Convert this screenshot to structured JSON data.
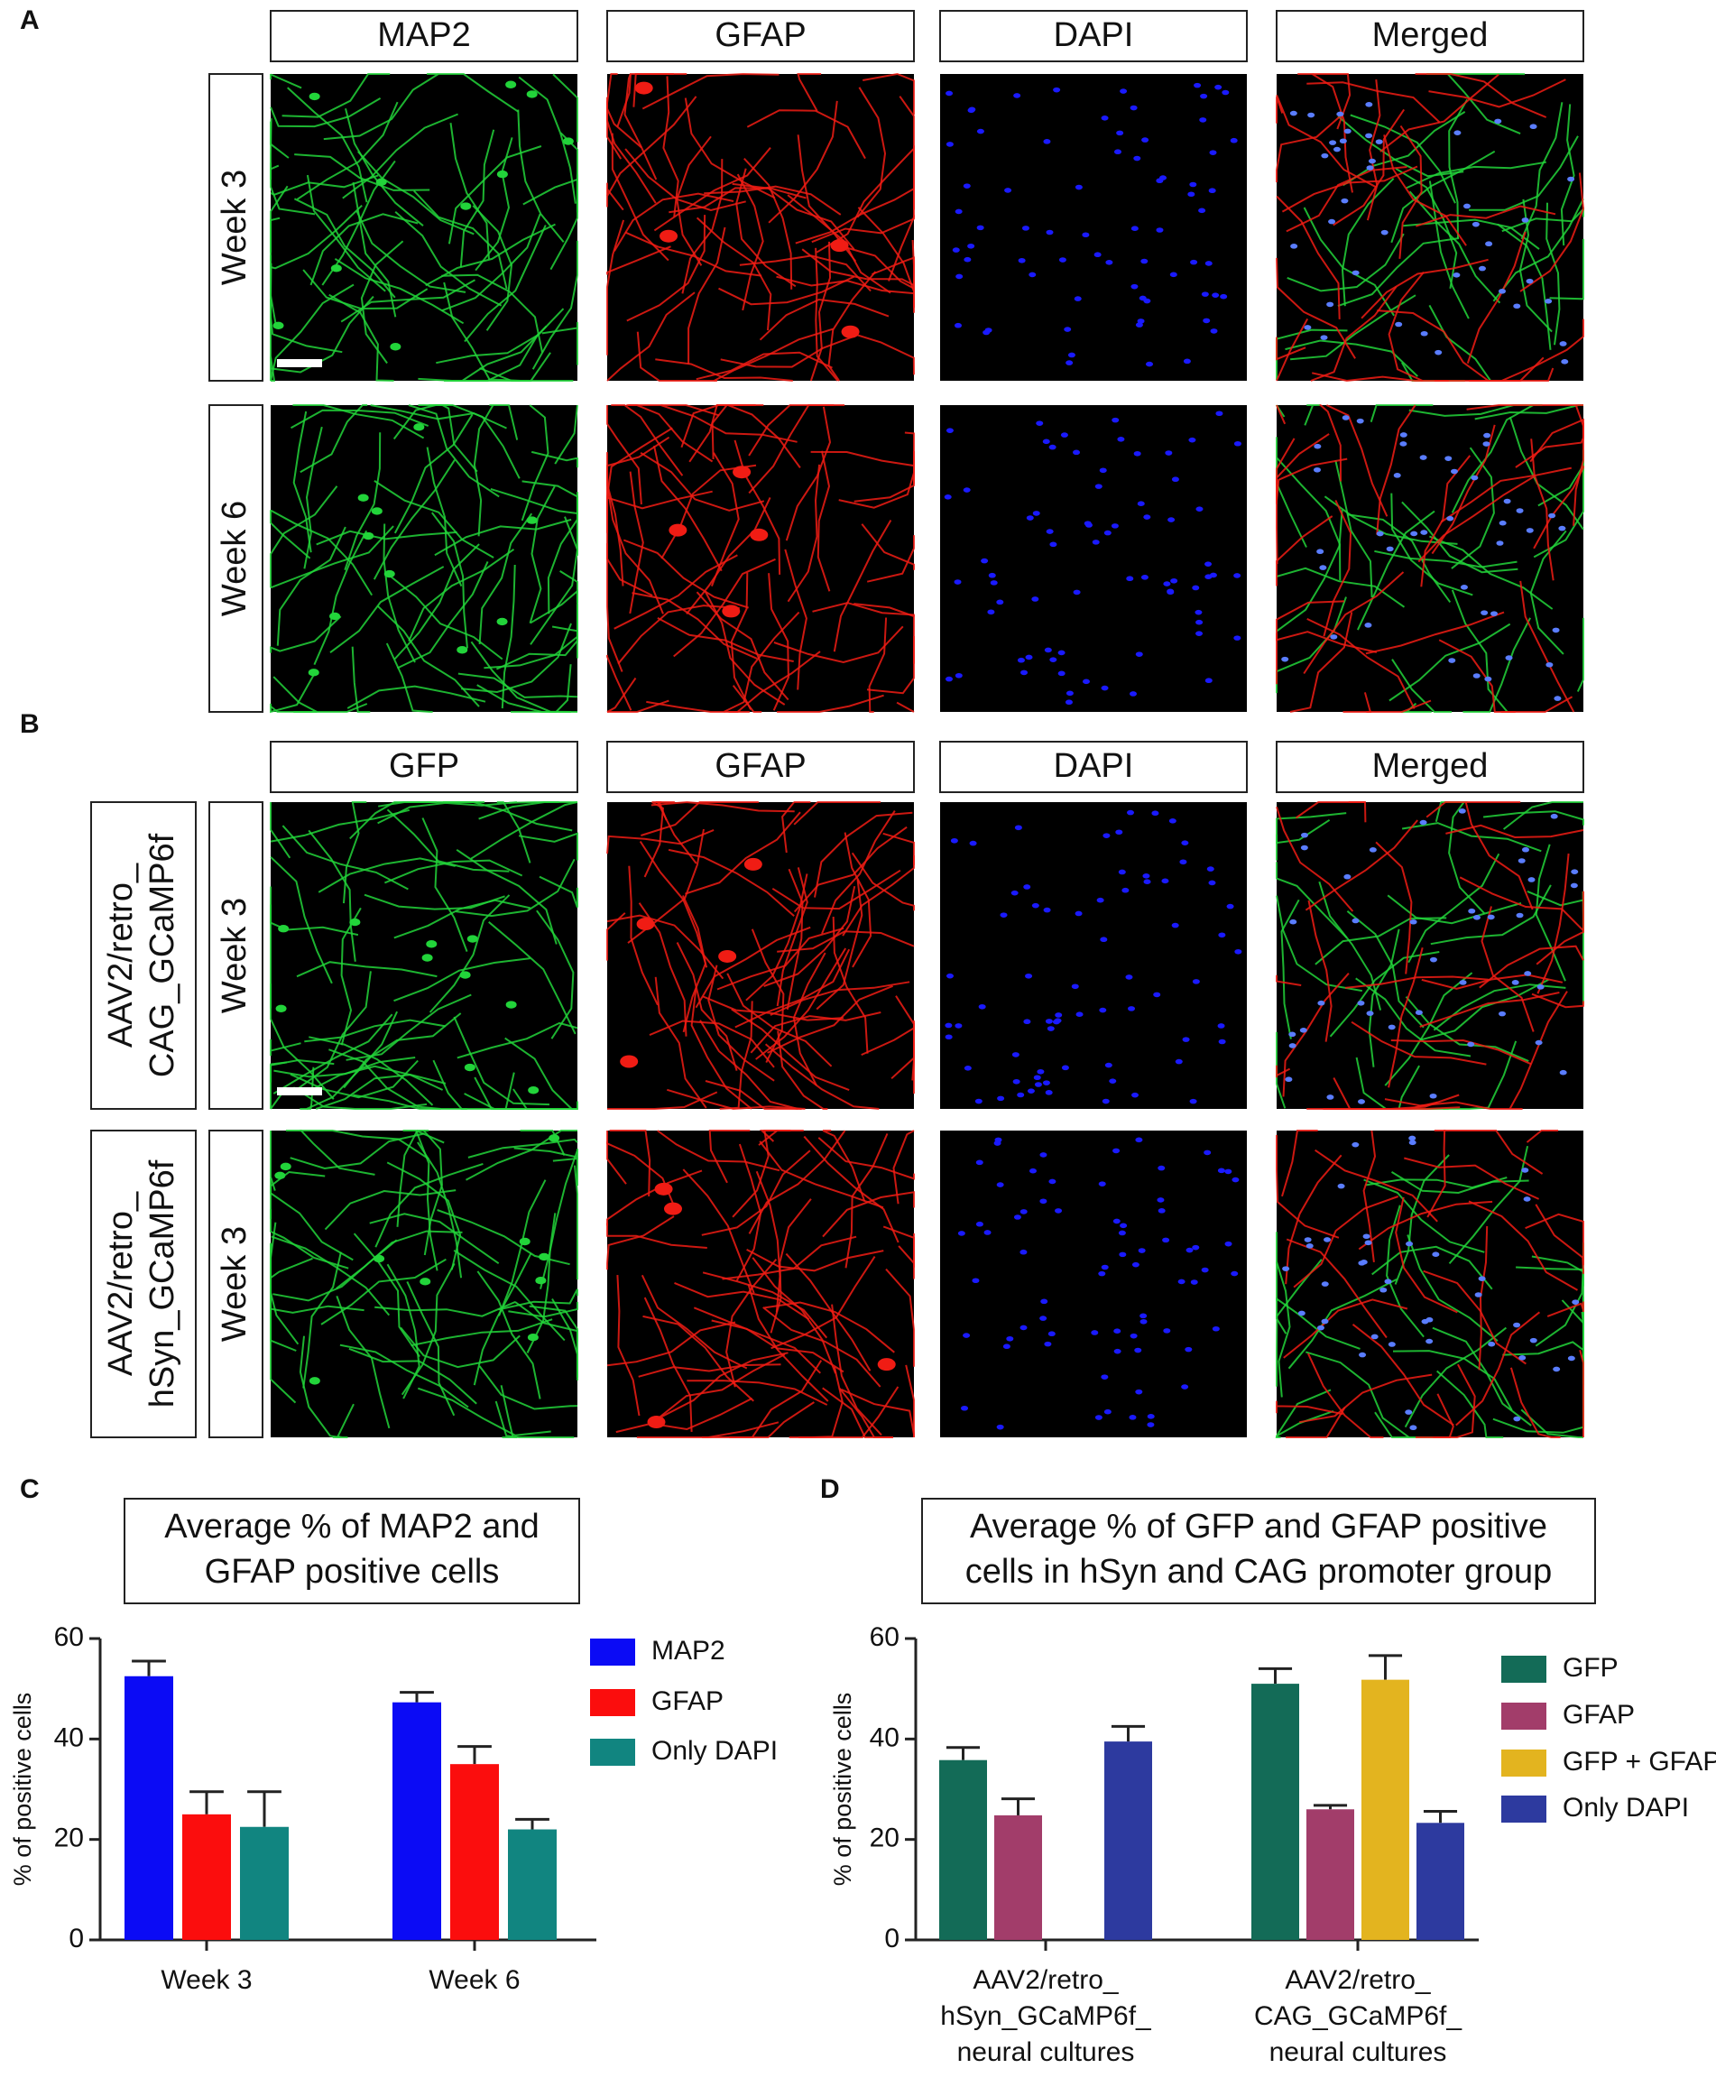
{
  "panels": {
    "A": {
      "label": "A",
      "columns": [
        "MAP2",
        "GFAP",
        "DAPI",
        "Merged"
      ],
      "rows": [
        {
          "week": "Week 3"
        },
        {
          "week": "Week 6"
        }
      ]
    },
    "B": {
      "label": "B",
      "columns": [
        "GFP",
        "GFAP",
        "DAPI",
        "Merged"
      ],
      "rows": [
        {
          "construct": [
            "AAV2/retro_",
            "CAG_GCaMP6f"
          ],
          "week": "Week 3"
        },
        {
          "construct": [
            "AAV2/retro_",
            "hSyn_GCaMP6f"
          ],
          "week": "Week 3"
        }
      ]
    }
  },
  "chart_data": [
    {
      "type": "bar",
      "panel_label": "C",
      "title": [
        "Average % of MAP2 and",
        "GFAP positive cells"
      ],
      "y_label": "% of  positive cells",
      "categories": [
        "Week 3",
        "Week 6"
      ],
      "series": [
        {
          "name": "MAP2",
          "color": "#0b0bf5",
          "values": [
            52.5,
            47.3
          ],
          "errors": [
            3,
            2
          ]
        },
        {
          "name": "GFAP",
          "color": "#fb0d0d",
          "values": [
            25,
            35
          ],
          "errors": [
            4.5,
            3.5
          ]
        },
        {
          "name": "Only DAPI",
          "color": "#118580",
          "values": [
            22.5,
            22
          ],
          "errors": [
            7,
            2
          ]
        }
      ],
      "ylim": [
        0,
        60
      ],
      "yticks": [
        0,
        20,
        40,
        60
      ],
      "grid": false
    },
    {
      "type": "bar",
      "panel_label": "D",
      "title": [
        "Average % of GFP and GFAP positive",
        "cells in hSyn and CAG promoter group"
      ],
      "y_label": "% of  positive cells",
      "categories": [
        [
          "AAV2/retro_",
          "hSyn_GCaMP6f_",
          "neural cultures"
        ],
        [
          "AAV2/retro_",
          "CAG_GCaMP6f_",
          "neural cultures"
        ]
      ],
      "series": [
        {
          "name": "GFP",
          "color": "#136b57",
          "values": [
            35.8,
            51
          ],
          "errors": [
            2.5,
            3
          ]
        },
        {
          "name": "GFAP",
          "color": "#a23d6a",
          "values": [
            24.8,
            26
          ],
          "errors": [
            3.3,
            0.8
          ]
        },
        {
          "name": "GFP + GFAP",
          "color": "#e3b41f",
          "values": [
            null,
            51.8
          ],
          "errors": [
            null,
            4.8
          ]
        },
        {
          "name": "Only DAPI",
          "color": "#2d3a9f",
          "values": [
            39.5,
            23.3
          ],
          "errors": [
            3,
            2.3
          ]
        }
      ],
      "ylim": [
        0,
        60
      ],
      "yticks": [
        0,
        20,
        40,
        60
      ],
      "grid": false
    }
  ]
}
